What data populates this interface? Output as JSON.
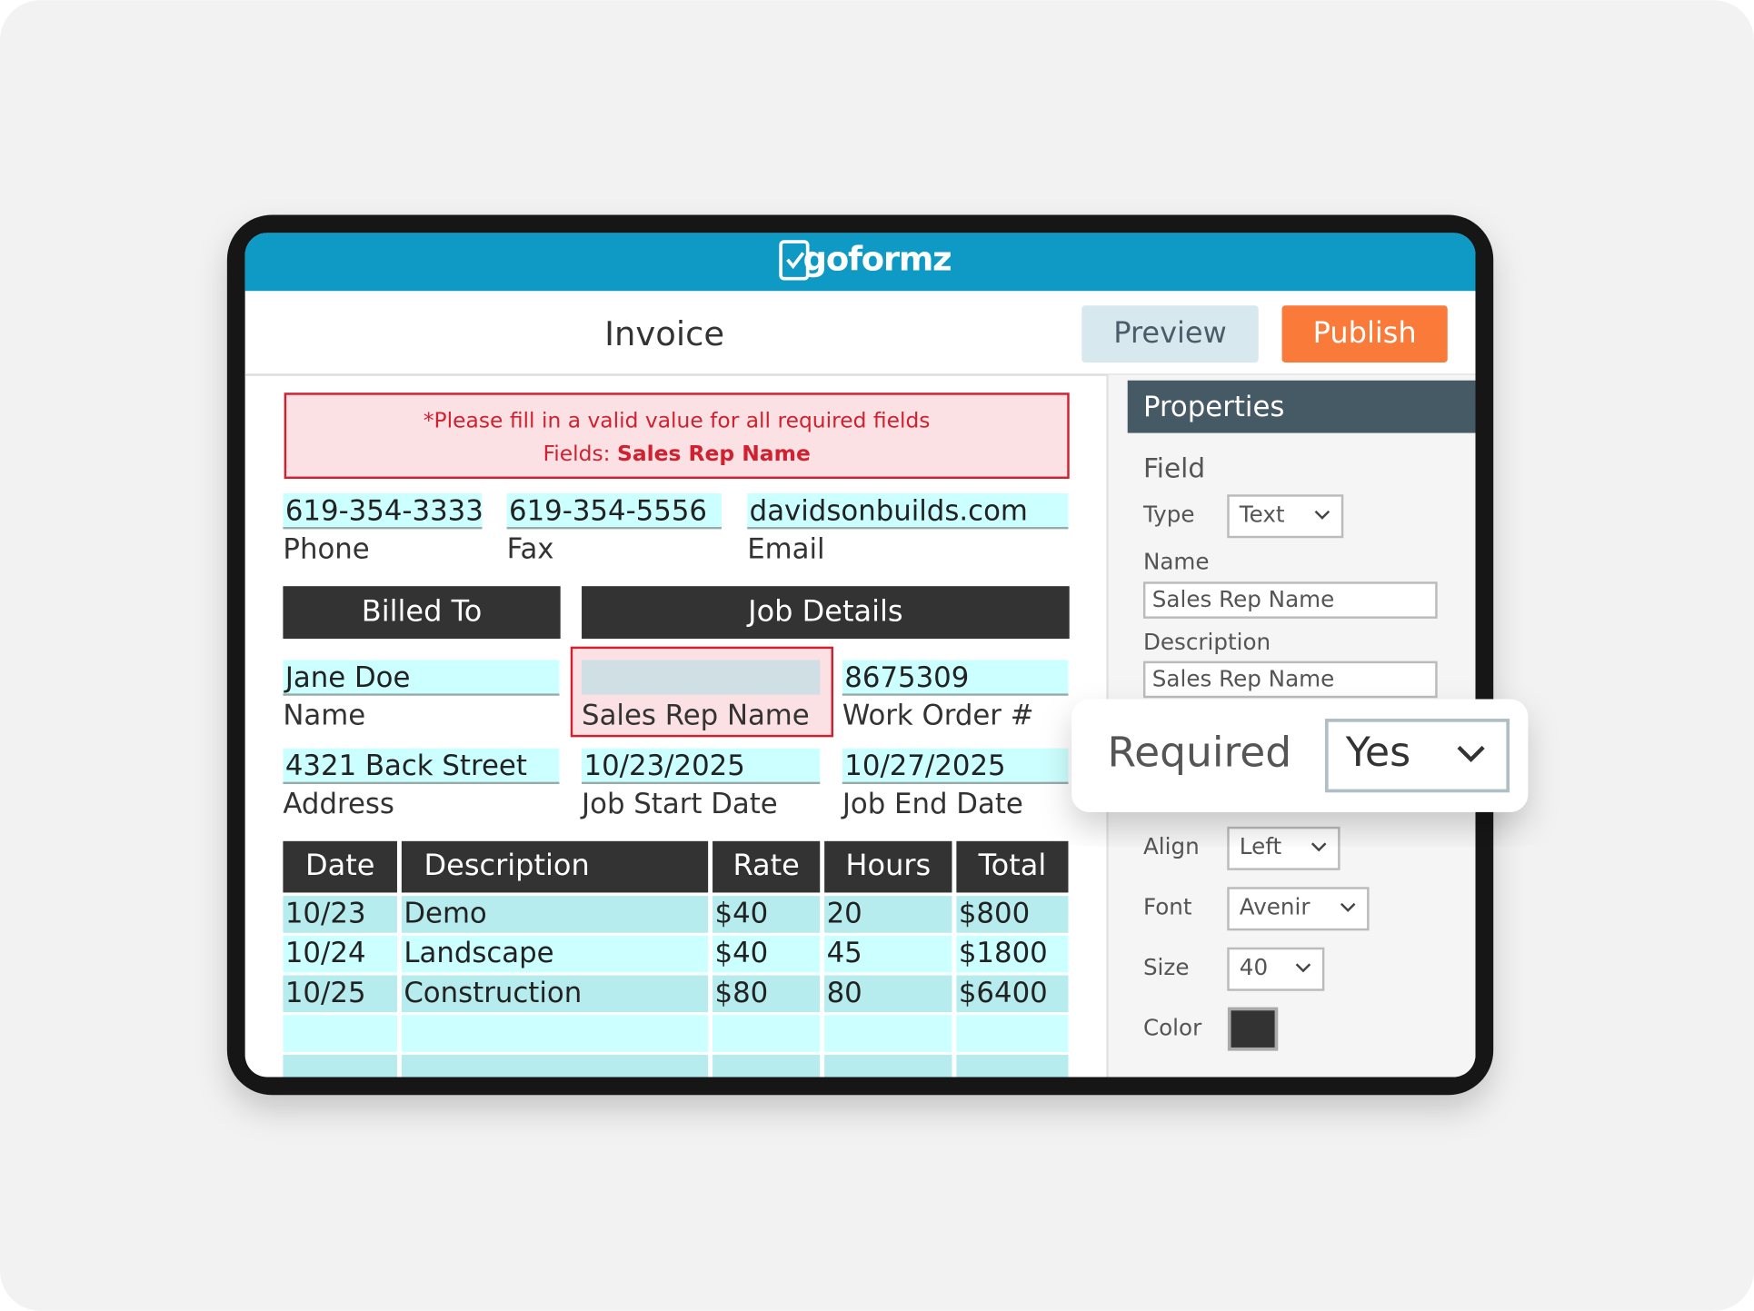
{
  "app": {
    "logo": "goformz"
  },
  "toolbar": {
    "title": "Invoice",
    "buttons": [
      "Preview",
      "Publish"
    ]
  },
  "alert": {
    "message": "*Please fill in a valid value for all required fields",
    "fields_label": "Fields:",
    "fields_value": "Sales Rep Name"
  },
  "contact": [
    {
      "value": "619-354-3333",
      "label": "Phone"
    },
    {
      "value": "619-354-5556",
      "label": "Fax"
    },
    {
      "value": "davidsonbuilds.com",
      "label": "Email"
    }
  ],
  "sections": [
    "Billed To",
    "Job Details"
  ],
  "fields": [
    {
      "value": "Jane Doe",
      "label": "Name"
    },
    {
      "label": "Sales Rep Name"
    },
    {
      "value": "8675309",
      "label": "Work Order #"
    },
    {
      "value": "4321 Back Street",
      "label": "Address"
    },
    {
      "value": "10/23/2025",
      "label": "Job Start Date"
    },
    {
      "value": "10/27/2025",
      "label": "Job End Date"
    }
  ],
  "table": {
    "headers": [
      "Date",
      "Description",
      "Rate",
      "Hours",
      "Total"
    ],
    "rows": [
      [
        "10/23",
        "Demo",
        "$40",
        "20",
        "$800"
      ],
      [
        "10/24",
        "Landscape",
        "$40",
        "45",
        "$1800"
      ],
      [
        "10/25",
        "Construction",
        "$80",
        "80",
        "$6400"
      ]
    ]
  },
  "properties": {
    "title": "Properties",
    "section": "Field",
    "type_label": "Type",
    "type_value": "Text",
    "name_label": "Name",
    "name_value": "Sales Rep Name",
    "description_label": "Description",
    "description_value": "Sales Rep Name",
    "required_label": "Required",
    "required_value": "Yes",
    "align_label": "Align",
    "align_value": "Left",
    "font_label": "Font",
    "font_value": "Avenir",
    "size_label": "Size",
    "size_value": "40",
    "color_label": "Color"
  }
}
